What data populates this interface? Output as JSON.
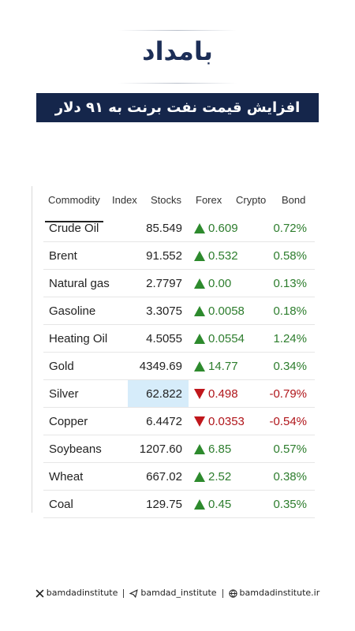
{
  "header": {
    "logo": "بامداد",
    "title": "افزایش قیمت نفت برنت به ۹۱ دلار"
  },
  "table": {
    "tabs": [
      "Commodity",
      "Index",
      "Stocks",
      "Forex",
      "Crypto",
      "Bond"
    ],
    "rows": [
      {
        "name": "Crude Oil",
        "price": "85.549",
        "change": "0.609",
        "percent": "0.72%",
        "trend": "up"
      },
      {
        "name": "Brent",
        "price": "91.552",
        "change": "0.532",
        "percent": "0.58%",
        "trend": "up"
      },
      {
        "name": "Natural gas",
        "price": "2.7797",
        "change": "0.00",
        "percent": "0.13%",
        "trend": "up"
      },
      {
        "name": "Gasoline",
        "price": "3.3075",
        "change": "0.0058",
        "percent": "0.18%",
        "trend": "up"
      },
      {
        "name": "Heating Oil",
        "price": "4.5055",
        "change": "0.0554",
        "percent": "1.24%",
        "trend": "up"
      },
      {
        "name": "Gold",
        "price": "4349.69",
        "change": "14.77",
        "percent": "0.34%",
        "trend": "up"
      },
      {
        "name": "Silver",
        "price": "62.822",
        "change": "0.498",
        "percent": "-0.79%",
        "trend": "down",
        "highlighted": true
      },
      {
        "name": "Copper",
        "price": "6.4472",
        "change": "0.0353",
        "percent": "-0.54%",
        "trend": "down"
      },
      {
        "name": "Soybeans",
        "price": "1207.60",
        "change": "6.85",
        "percent": "0.57%",
        "trend": "up"
      },
      {
        "name": "Wheat",
        "price": "667.02",
        "change": "2.52",
        "percent": "0.38%",
        "trend": "up"
      },
      {
        "name": "Coal",
        "price": "129.75",
        "change": "0.45",
        "percent": "0.35%",
        "trend": "up"
      }
    ]
  },
  "footer": {
    "x": "bamdadinstitute",
    "telegram": "bamdad_institute",
    "web": "bamdadinstitute.ir"
  }
}
